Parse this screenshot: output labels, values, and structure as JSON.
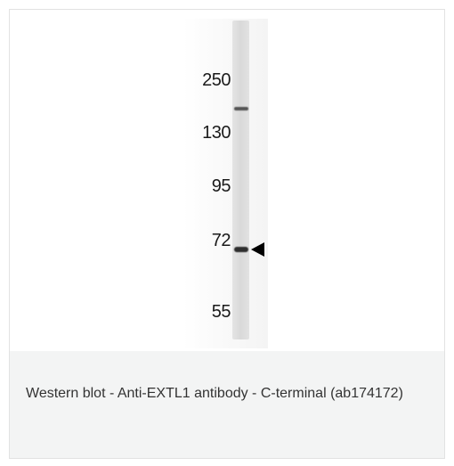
{
  "figure": {
    "markers": [
      {
        "label": "250"
      },
      {
        "label": "130"
      },
      {
        "label": "95"
      },
      {
        "label": "72"
      },
      {
        "label": "55"
      }
    ],
    "arrow_icon": "left-pointing-triangle",
    "colors": {
      "band": "#2e2e2e",
      "lane": "#d9d9d9"
    }
  },
  "caption": {
    "text": "Western blot - Anti-EXTL1 antibody - C-terminal (ab174172)"
  }
}
